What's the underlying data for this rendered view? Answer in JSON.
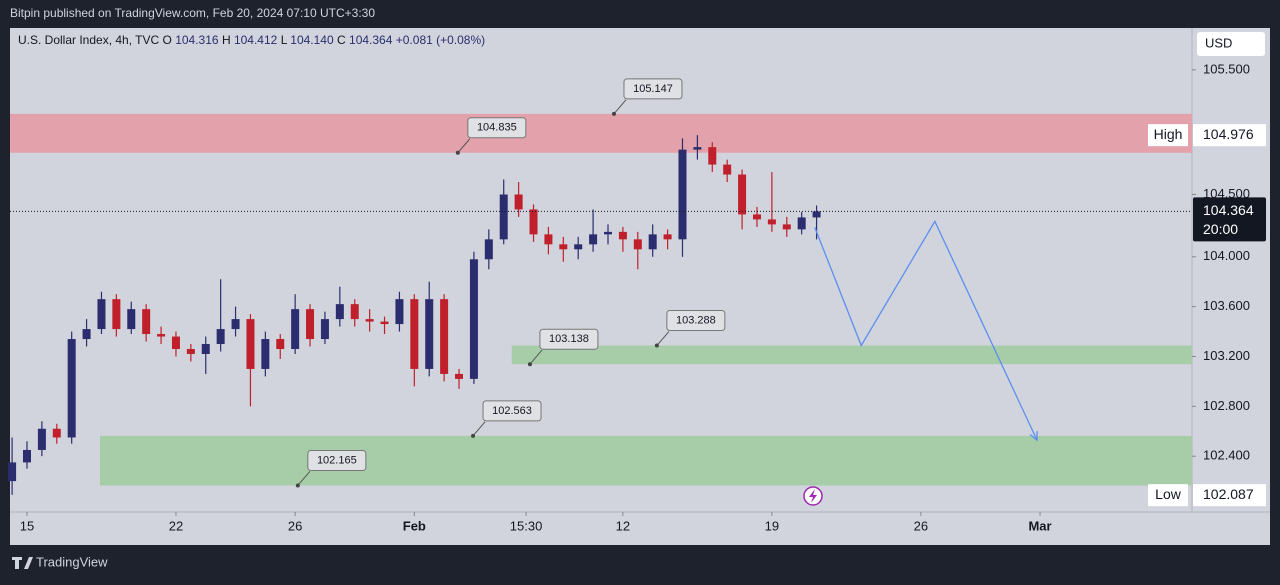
{
  "publisher_line": "Bitpin published on TradingView.com, Feb 20, 2024 07:10 UTC+3:30",
  "footer_brand": "TradingView",
  "chart_data": {
    "type": "candlestick",
    "symbol": "U.S. Dollar Index, 4h, TVC",
    "ohlc": [
      {
        "label": "O",
        "value": 104.316
      },
      {
        "label": "H",
        "value": 104.412
      },
      {
        "label": "L",
        "value": 104.14
      },
      {
        "label": "C",
        "value": 104.364
      }
    ],
    "change": "+0.081 (+0.08%)",
    "currency": "USD",
    "up_color": "#2b2d6e",
    "down_color": "#c0202b",
    "x": [
      -0.5,
      0,
      0.5,
      1,
      1.5,
      2,
      2.5,
      3,
      3.5,
      4,
      4.5,
      5,
      5.5,
      6,
      6.5,
      7,
      7.5,
      8,
      8.5,
      9,
      9.5,
      10,
      10.5,
      11,
      11.5,
      12,
      12.5,
      13,
      13.5,
      14,
      14.5,
      15,
      15.5,
      16,
      16.5,
      17,
      17.5,
      18,
      18.5,
      19,
      19.5,
      20,
      20.5,
      21,
      21.5,
      22,
      22.5,
      23,
      23.5,
      24,
      24.5,
      25,
      25.5,
      26,
      26.5
    ],
    "open": [
      102.2,
      102.35,
      102.45,
      102.62,
      102.55,
      103.34,
      103.42,
      103.66,
      103.42,
      103.58,
      103.38,
      103.36,
      103.26,
      103.22,
      103.3,
      103.42,
      103.5,
      103.1,
      103.34,
      103.26,
      103.58,
      103.34,
      103.5,
      103.62,
      103.5,
      103.48,
      103.46,
      103.66,
      103.1,
      103.66,
      103.06,
      103.02,
      103.98,
      104.14,
      104.5,
      104.38,
      104.18,
      104.1,
      104.06,
      104.1,
      104.18,
      104.2,
      104.14,
      104.06,
      104.18,
      104.14,
      104.86,
      104.88,
      104.74,
      104.66,
      104.34,
      104.3,
      104.26,
      104.22,
      104.316
    ],
    "high": [
      102.55,
      102.52,
      102.68,
      102.66,
      103.4,
      103.5,
      103.72,
      103.7,
      103.64,
      103.62,
      103.44,
      103.4,
      103.3,
      103.36,
      103.82,
      103.6,
      103.54,
      103.4,
      103.38,
      103.7,
      103.62,
      103.56,
      103.76,
      103.66,
      103.58,
      103.52,
      103.72,
      103.7,
      103.8,
      103.7,
      103.1,
      104.04,
      104.22,
      104.62,
      104.6,
      104.42,
      104.24,
      104.16,
      104.16,
      104.38,
      104.26,
      104.24,
      104.2,
      104.26,
      104.22,
      104.95,
      104.976,
      104.92,
      104.78,
      104.7,
      104.4,
      104.68,
      104.32,
      104.36,
      104.412
    ],
    "low": [
      102.09,
      102.3,
      102.4,
      102.5,
      102.5,
      103.28,
      103.38,
      103.36,
      103.38,
      103.32,
      103.3,
      103.2,
      103.16,
      103.06,
      103.24,
      103.36,
      102.8,
      103.04,
      103.18,
      103.22,
      103.28,
      103.3,
      103.44,
      103.44,
      103.4,
      103.38,
      103.4,
      102.96,
      103.04,
      103.0,
      102.94,
      102.98,
      103.9,
      104.1,
      104.32,
      104.12,
      104.02,
      103.96,
      103.98,
      104.04,
      104.1,
      104.04,
      103.9,
      104.0,
      104.06,
      104.0,
      104.78,
      104.68,
      104.6,
      104.22,
      104.24,
      104.2,
      104.16,
      104.18,
      104.14
    ],
    "close": [
      102.35,
      102.45,
      102.62,
      102.55,
      103.34,
      103.42,
      103.66,
      103.42,
      103.58,
      103.38,
      103.36,
      103.26,
      103.22,
      103.3,
      103.42,
      103.5,
      103.1,
      103.34,
      103.26,
      103.58,
      103.34,
      103.5,
      103.62,
      103.5,
      103.48,
      103.46,
      103.66,
      103.1,
      103.66,
      103.06,
      103.02,
      103.98,
      104.14,
      104.5,
      104.38,
      104.18,
      104.1,
      104.06,
      104.1,
      104.18,
      104.2,
      104.14,
      104.06,
      104.18,
      104.14,
      104.86,
      104.88,
      104.74,
      104.66,
      104.34,
      104.3,
      104.26,
      104.22,
      104.316,
      104.364
    ],
    "xlim": [
      -0.57,
      39.1
    ],
    "ylim": [
      101.952,
      105.836
    ],
    "xticks": [
      {
        "value": 0,
        "label": "15"
      },
      {
        "value": 5,
        "label": "22"
      },
      {
        "value": 9,
        "label": "26"
      },
      {
        "value": 13,
        "label": "Feb"
      },
      {
        "value": 16.75,
        "label": "15:30"
      },
      {
        "value": 20,
        "label": "12"
      },
      {
        "value": 25,
        "label": "19"
      },
      {
        "value": 30,
        "label": "26"
      },
      {
        "value": 34,
        "label": "Mar"
      }
    ],
    "yticks": [
      {
        "value": 105.5,
        "label": "105.500"
      },
      {
        "value": 104.5,
        "label": "104.500"
      },
      {
        "value": 104.0,
        "label": "104.000"
      },
      {
        "value": 103.6,
        "label": "103.600"
      },
      {
        "value": 103.2,
        "label": "103.200"
      },
      {
        "value": 102.8,
        "label": "102.800"
      },
      {
        "value": 102.4,
        "label": "102.400"
      }
    ],
    "last_price_countdown": "20:00",
    "high_marker": {
      "label": "High",
      "value": 104.976
    },
    "low_marker": {
      "label": "Low",
      "value": 102.087
    },
    "zones": [
      {
        "color": "#e3a2ab",
        "x_start": -0.57,
        "low": {
          "value": 104.835,
          "x": 14.46
        },
        "high": {
          "value": 105.147,
          "x": 19.7
        }
      },
      {
        "color": "#a6cca8",
        "x_start": 16.27,
        "low": {
          "value": 103.138,
          "x": 16.88
        },
        "high": {
          "value": 103.288,
          "x": 21.14
        }
      },
      {
        "color": "#a6cca8",
        "x_start": 2.45,
        "low": {
          "value": 102.165,
          "x": 9.09
        },
        "high": {
          "value": 102.563,
          "x": 14.97
        }
      }
    ],
    "projection": {
      "color": "#5b8ff0",
      "x": [
        26.44,
        28.0,
        30.47,
        33.9
      ],
      "y": [
        104.236,
        103.288,
        104.284,
        102.528
      ]
    }
  }
}
